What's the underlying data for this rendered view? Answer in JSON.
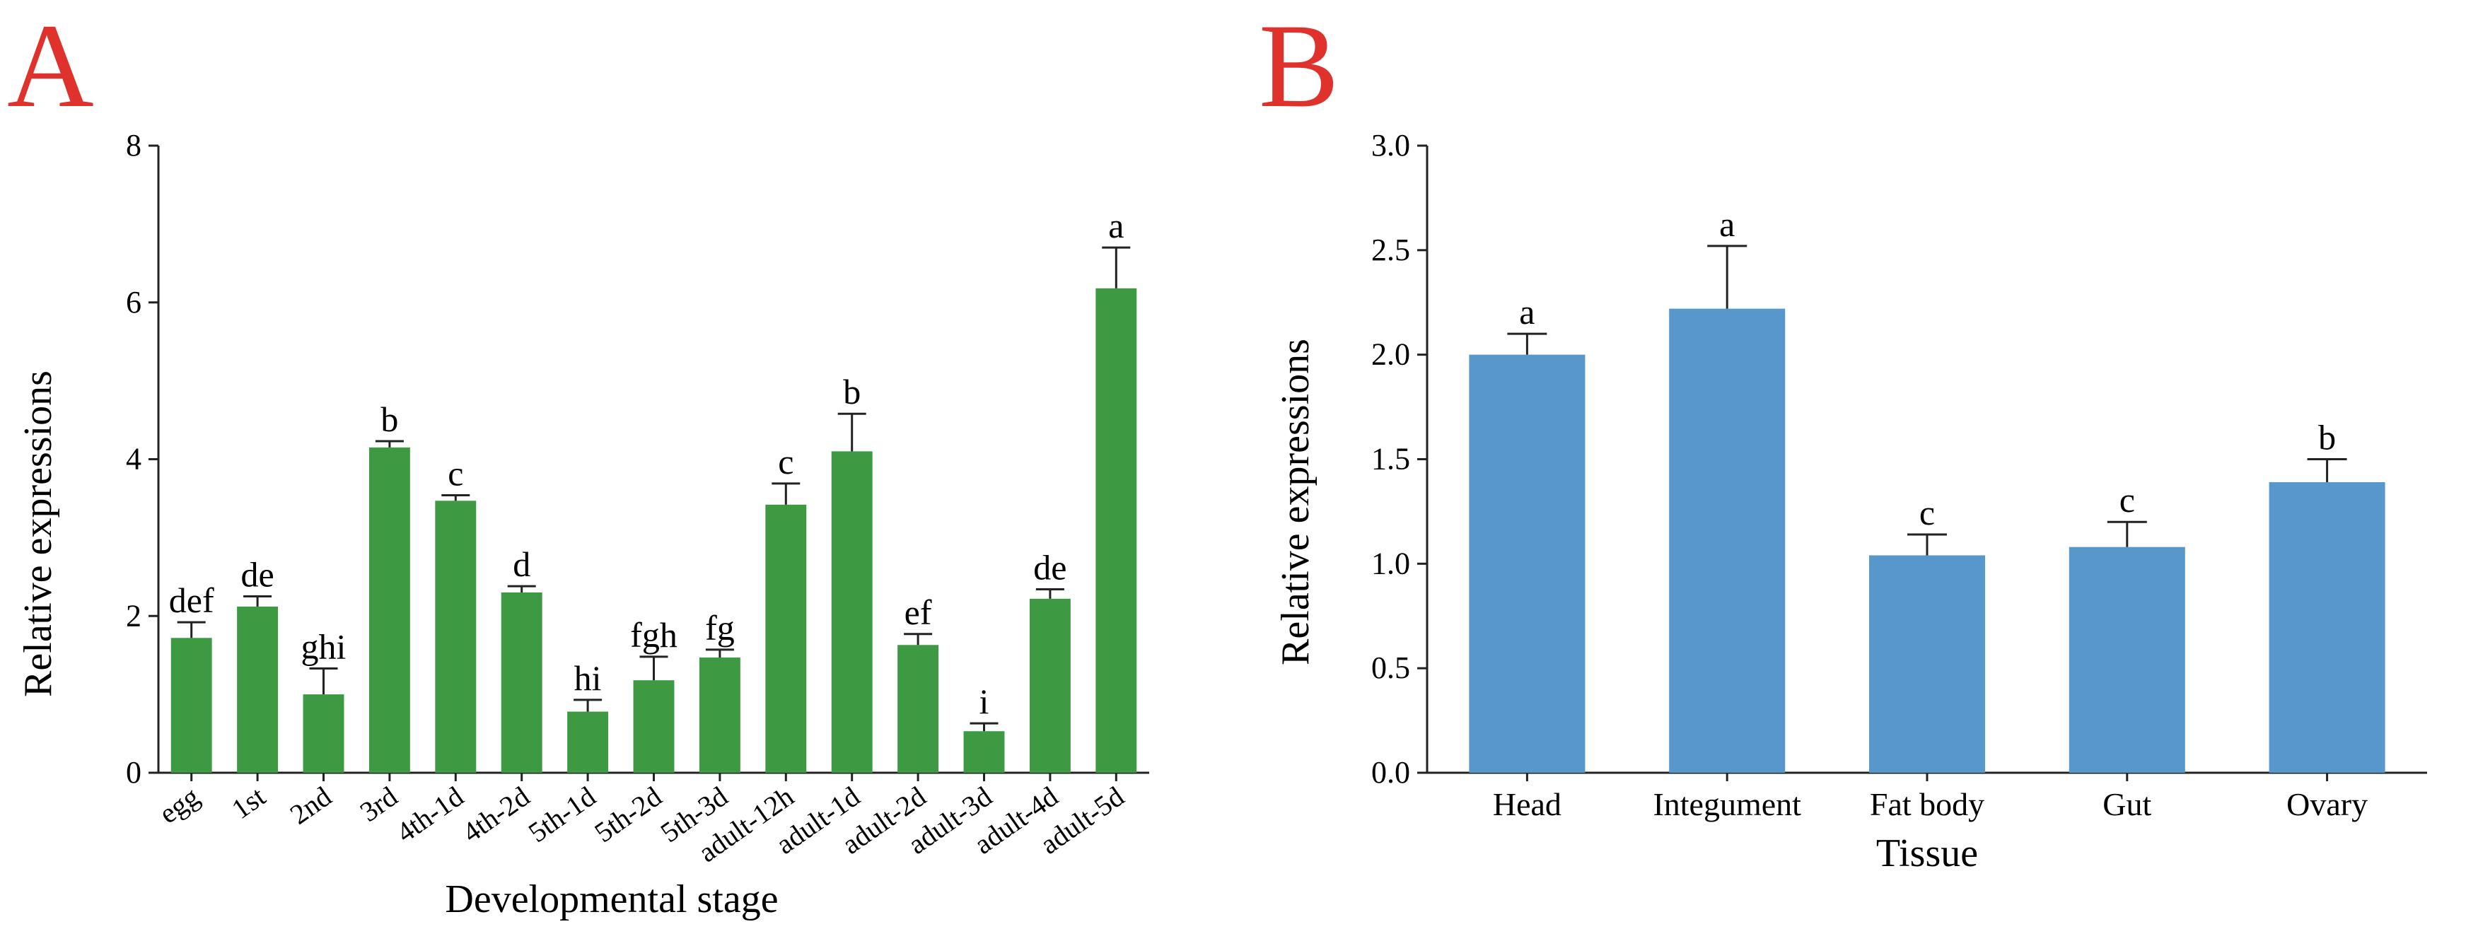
{
  "panels": {
    "a_letter": "A",
    "b_letter": "B",
    "letter_color": "#e0322d"
  },
  "chart_data": [
    {
      "type": "bar",
      "panel": "A",
      "ylabel": "Relative expressions",
      "xlabel": "Developmental stage",
      "ylim": [
        0,
        8
      ],
      "yticks": [
        0,
        2,
        4,
        6,
        8
      ],
      "ytick_labels": [
        "0",
        "2",
        "4",
        "6",
        "8"
      ],
      "bar_color": "#3d9a43",
      "categories": [
        "egg",
        "1st",
        "2nd",
        "3rd",
        "4th-1d",
        "4th-2d",
        "5th-1d",
        "5th-2d",
        "5th-3d",
        "adult-12h",
        "adult-1d",
        "adult-2d",
        "adult-3d",
        "adult-4d",
        "adult-5d"
      ],
      "values": [
        1.72,
        2.12,
        1.0,
        4.15,
        3.47,
        2.3,
        0.78,
        1.18,
        1.47,
        3.42,
        4.1,
        1.63,
        0.53,
        2.22,
        6.18
      ],
      "errors": [
        0.2,
        0.13,
        0.33,
        0.08,
        0.07,
        0.08,
        0.15,
        0.3,
        0.1,
        0.27,
        0.48,
        0.14,
        0.1,
        0.12,
        0.52
      ],
      "annotations": [
        "def",
        "de",
        "ghi",
        "b",
        "c",
        "d",
        "hi",
        "fgh",
        "fg",
        "c",
        "b",
        "ef",
        "i",
        "de",
        "a"
      ]
    },
    {
      "type": "bar",
      "panel": "B",
      "ylabel": "Relative expressions",
      "xlabel": "Tissue",
      "ylim": [
        0,
        3.0
      ],
      "yticks": [
        0,
        0.5,
        1.0,
        1.5,
        2.0,
        2.5,
        3.0
      ],
      "ytick_labels": [
        "0.0",
        "0.5",
        "1.0",
        "1.5",
        "2.0",
        "2.5",
        "3.0"
      ],
      "bar_color": "#5797cc",
      "categories": [
        "Head",
        "Integument",
        "Fat body",
        "Gut",
        "Ovary"
      ],
      "values": [
        2.0,
        2.22,
        1.04,
        1.08,
        1.39
      ],
      "errors": [
        0.1,
        0.3,
        0.1,
        0.12,
        0.11
      ],
      "annotations": [
        "a",
        "a",
        "c",
        "c",
        "b"
      ]
    }
  ]
}
